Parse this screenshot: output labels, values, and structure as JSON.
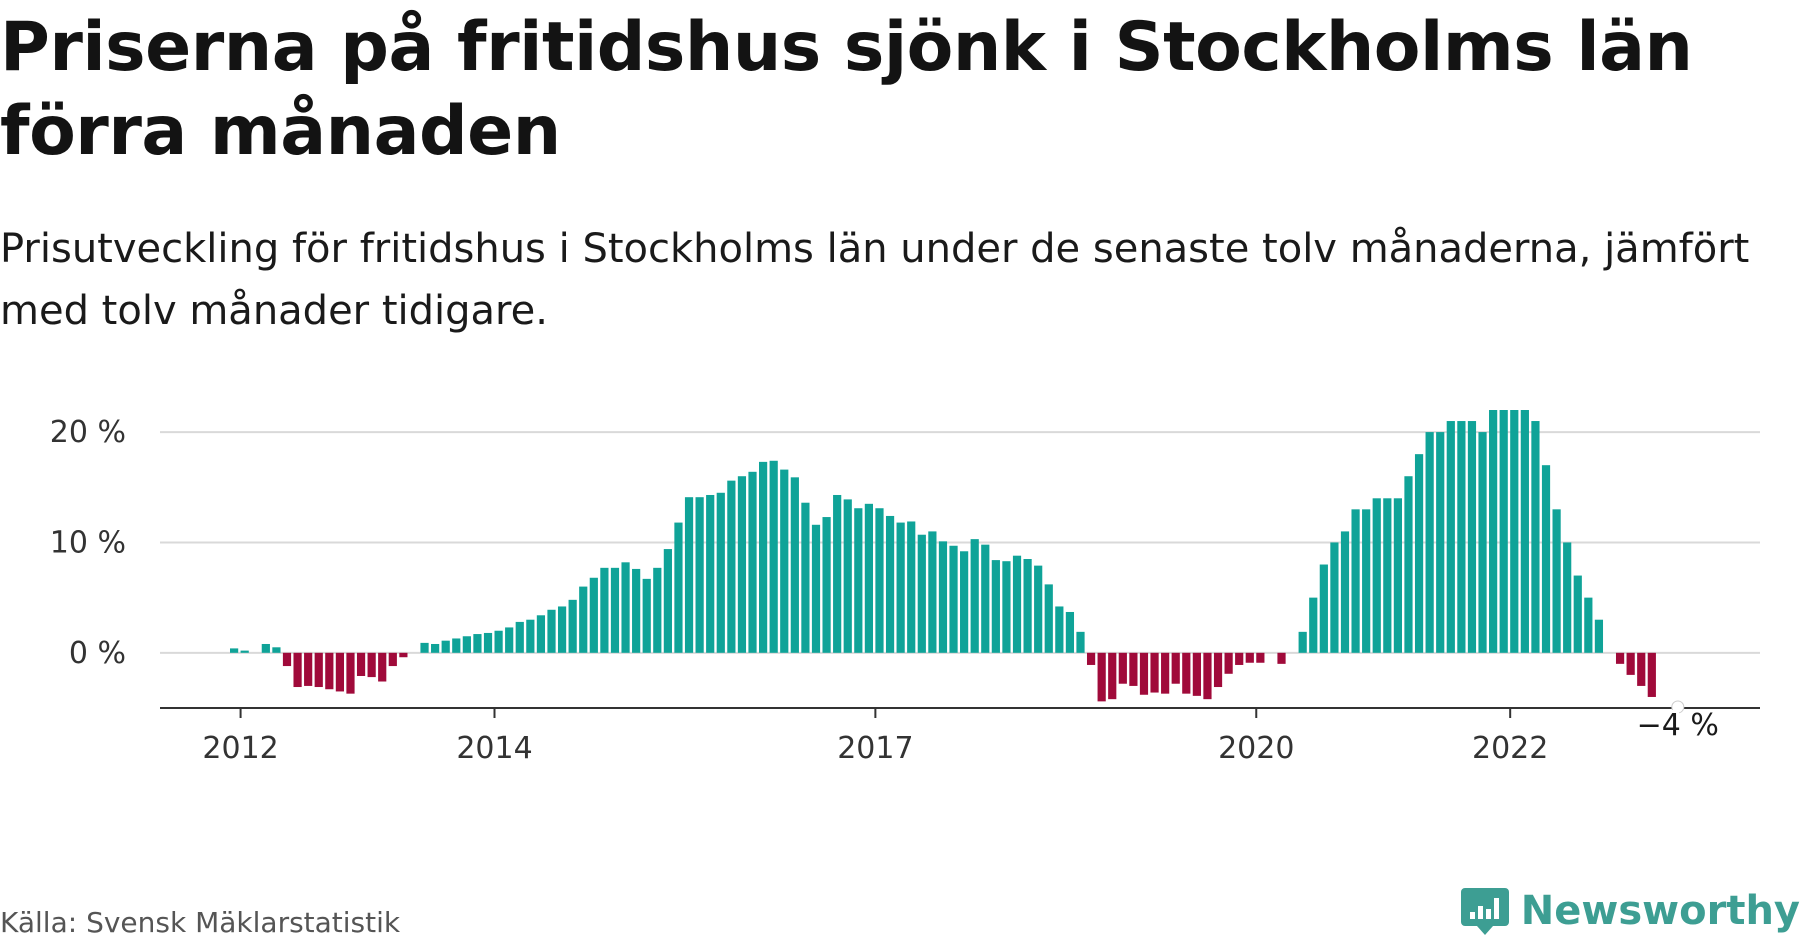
{
  "title": "Priserna på fritidshus sjönk i Stockholms län förra månaden",
  "subtitle": "Prisutveckling för fritidshus i Stockholms län under de senaste tolv månaderna, jämfört med tolv månader tidigare.",
  "source": "Källa: Svensk Mäklarstatistik",
  "brand": {
    "name": "Newsworthy",
    "icon": "newsworthy-logo-icon",
    "color": "#3d9e93"
  },
  "colors": {
    "positive": "#0fa398",
    "negative": "#a00a3a",
    "grid": "#d9d9d9",
    "axis": "#333333"
  },
  "chart_data": {
    "type": "bar",
    "title": "Priserna på fritidshus sjönk i Stockholms län förra månaden",
    "xlabel": "",
    "ylabel": "",
    "y_unit": "%",
    "ylim": [
      -5,
      22
    ],
    "yticks": [
      0,
      10,
      20
    ],
    "ytick_labels": [
      "0 %",
      "10 %",
      "20 %"
    ],
    "xticks": [
      2012,
      2014,
      2017,
      2020,
      2022
    ],
    "xtick_labels": [
      "2012",
      "2014",
      "2017",
      "2020",
      "2022"
    ],
    "start": "2011-12",
    "grid": true,
    "annotation": {
      "label": "−4 %",
      "target": "last"
    },
    "values": [
      0.4,
      0.2,
      0,
      0.8,
      0.5,
      -1.2,
      -3.1,
      -3.0,
      -3.1,
      -3.3,
      -3.5,
      -3.7,
      -2.1,
      -2.2,
      -2.6,
      -1.2,
      -0.4,
      0,
      0.9,
      0.8,
      1.1,
      1.3,
      1.5,
      1.7,
      1.8,
      2.0,
      2.3,
      2.8,
      3.0,
      3.4,
      3.9,
      4.2,
      4.8,
      6.0,
      6.8,
      7.7,
      7.7,
      8.2,
      7.6,
      6.7,
      7.7,
      9.4,
      11.8,
      14.1,
      14.1,
      14.3,
      14.5,
      15.6,
      16.0,
      16.4,
      17.3,
      17.4,
      16.6,
      15.9,
      13.6,
      11.6,
      12.3,
      14.3,
      13.9,
      13.1,
      13.5,
      13.1,
      12.4,
      11.8,
      11.9,
      10.7,
      11.0,
      10.1,
      9.7,
      9.2,
      10.3,
      9.8,
      8.4,
      8.3,
      8.8,
      8.5,
      7.9,
      6.2,
      4.2,
      3.7,
      1.9,
      -1.1,
      -4.4,
      -4.2,
      -2.8,
      -3.0,
      -3.8,
      -3.6,
      -3.7,
      -2.8,
      -3.7,
      -3.9,
      -4.2,
      -3.1,
      -1.9,
      -1.1,
      -0.9,
      -0.9,
      0,
      -1.0,
      0,
      1.9,
      5.0,
      8.0,
      10.0,
      11.0,
      13.0,
      13.0,
      14.0,
      14.0,
      14.0,
      16.0,
      18.0,
      20.0,
      20.0,
      21.0,
      21.0,
      21.0,
      20.0,
      22.0,
      22.0,
      22.0,
      22.0,
      21.0,
      17.0,
      13.0,
      10.0,
      7.0,
      5.0,
      3.0,
      0,
      -1.0,
      -2.0,
      -3.0,
      -4.0
    ]
  }
}
